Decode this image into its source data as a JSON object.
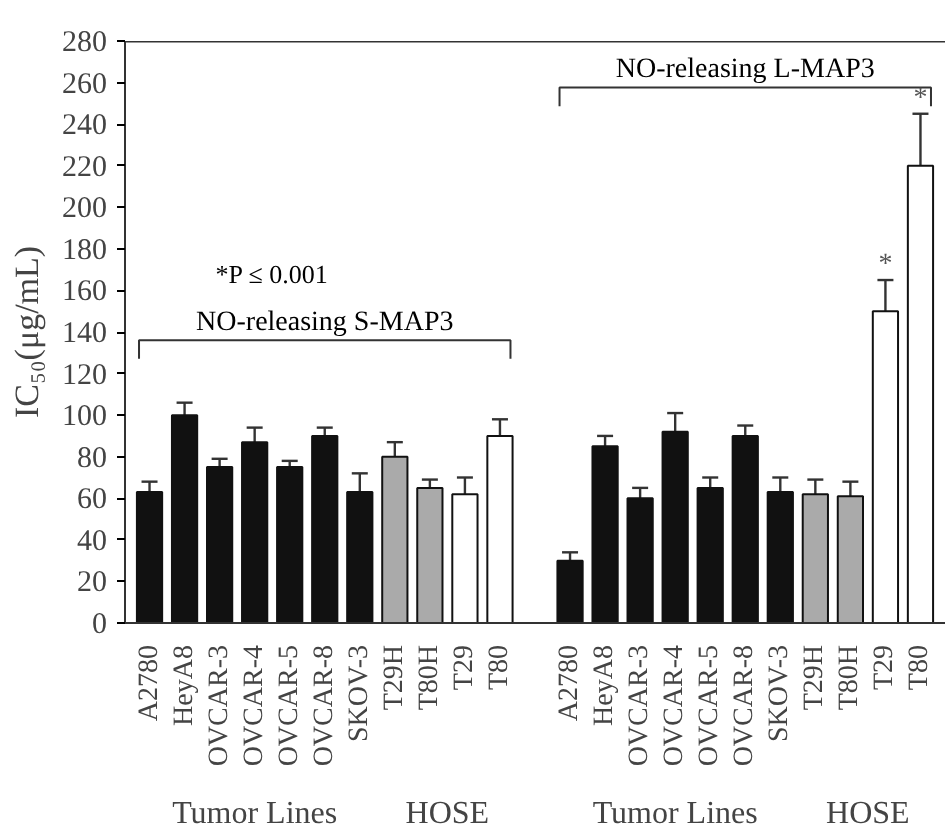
{
  "chart_data": {
    "type": "bar",
    "ylabel": "IC₅₀(μg/mL)",
    "categories": [
      "A2780",
      "HeyA8",
      "OVCAR-3",
      "OVCAR-4",
      "OVCAR-5",
      "OVCAR-8",
      "SKOV-3",
      "T29H",
      "T80H",
      "T29",
      "T80",
      null,
      "A2780",
      "HeyA8",
      "OVCAR-3",
      "OVCAR-4",
      "OVCAR-5",
      "OVCAR-8",
      "SKOV-3",
      "T29H",
      "T80H",
      "T29",
      "T80"
    ],
    "values": [
      63,
      100,
      75,
      87,
      75,
      90,
      63,
      80,
      65,
      62,
      90,
      null,
      30,
      85,
      60,
      92,
      65,
      90,
      63,
      62,
      61,
      150,
      220
    ],
    "errors": [
      [
        63,
        68
      ],
      [
        100,
        106
      ],
      [
        75,
        79
      ],
      [
        87,
        94
      ],
      [
        75,
        78
      ],
      [
        90,
        94
      ],
      [
        63,
        72
      ],
      [
        80,
        87
      ],
      [
        65,
        69
      ],
      [
        62,
        70
      ],
      [
        90,
        98
      ],
      null,
      [
        30,
        34
      ],
      [
        85,
        90
      ],
      [
        60,
        65
      ],
      [
        92,
        101
      ],
      [
        65,
        70
      ],
      [
        90,
        95
      ],
      [
        63,
        70
      ],
      [
        62,
        69
      ],
      [
        61,
        68
      ],
      [
        150,
        165
      ],
      [
        220,
        245
      ]
    ],
    "colors": [
      "#111111",
      "#111111",
      "#111111",
      "#111111",
      "#111111",
      "#111111",
      "#111111",
      "#aaaaaa",
      "#aaaaaa",
      "#ffffff",
      "#ffffff",
      null,
      "#111111",
      "#111111",
      "#111111",
      "#111111",
      "#111111",
      "#111111",
      "#111111",
      "#aaaaaa",
      "#aaaaaa",
      "#ffffff",
      "#ffffff"
    ],
    "ylim": [
      0,
      280
    ],
    "yticks": [
      0,
      20,
      40,
      60,
      80,
      100,
      120,
      140,
      160,
      180,
      200,
      220,
      240,
      260,
      280
    ],
    "grid": false,
    "annotations": [
      "*P ≤ 0.001",
      "NO-releasing S-MAP3",
      "NO-releasing L-MAP3",
      "*",
      "*",
      "Tumor Lines",
      "HOSE",
      "Tumor Lines",
      "HOSE"
    ]
  }
}
